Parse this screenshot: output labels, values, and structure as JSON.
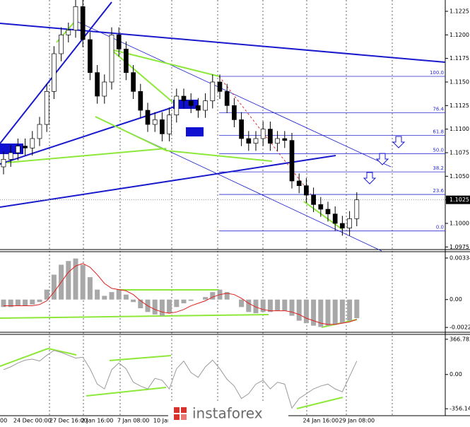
{
  "chart_data": [
    {
      "type": "candlestick",
      "categories": [
        "00",
        null,
        null,
        null,
        "24 Dec 00:00",
        null,
        null,
        null,
        null,
        "27 Dec 16:00",
        null,
        null,
        null,
        "2 Jan 16:00",
        null,
        null,
        null,
        null,
        "7 Jan 08:00",
        null,
        null,
        null,
        "10 Jan",
        null,
        null,
        null,
        null,
        null,
        null,
        null,
        null,
        null,
        null,
        null,
        null,
        null,
        null,
        null,
        null,
        null,
        null,
        null,
        null,
        null,
        "24 Jan 16:00",
        null,
        null,
        null,
        null,
        "29 Jan 08:00"
      ],
      "open": [
        1.106,
        1.1068,
        1.1075,
        1.1082,
        1.108,
        1.109,
        1.1105,
        1.114,
        1.118,
        1.12,
        1.1205,
        1.123,
        1.1195,
        1.116,
        1.1135,
        1.115,
        1.12,
        1.1185,
        1.116,
        1.114,
        1.112,
        1.1105,
        1.111,
        1.1095,
        1.1115,
        1.1135,
        1.113,
        1.1125,
        1.112,
        1.113,
        1.115,
        1.114,
        1.1125,
        1.111,
        1.109,
        1.1085,
        1.109,
        1.11,
        1.1085,
        1.109,
        1.1088,
        1.1045,
        1.104,
        1.103,
        1.102,
        1.1015,
        1.101,
        1.1,
        1.0995,
        1.1005
      ],
      "high": [
        1.1076,
        1.1083,
        1.109,
        1.109,
        1.1098,
        1.1113,
        1.1148,
        1.1188,
        1.1208,
        1.1213,
        1.1238,
        1.1238,
        1.1203,
        1.1168,
        1.1158,
        1.1208,
        1.1208,
        1.1193,
        1.1168,
        1.1148,
        1.1128,
        1.1118,
        1.1118,
        1.1123,
        1.1143,
        1.1143,
        1.1138,
        1.1133,
        1.1138,
        1.1158,
        1.1158,
        1.1148,
        1.1133,
        1.1118,
        1.1098,
        1.1098,
        1.1108,
        1.1108,
        1.1098,
        1.1098,
        1.1096,
        1.1053,
        1.1048,
        1.1038,
        1.1028,
        1.1023,
        1.1018,
        1.1008,
        1.1013,
        1.1033
      ],
      "low": [
        1.1052,
        1.106,
        1.1067,
        1.1072,
        1.1072,
        1.1082,
        1.1097,
        1.1132,
        1.1172,
        1.1192,
        1.1197,
        1.1187,
        1.1152,
        1.1127,
        1.1127,
        1.1142,
        1.1177,
        1.1152,
        1.1132,
        1.1112,
        1.1097,
        1.1097,
        1.1087,
        1.1087,
        1.1107,
        1.1122,
        1.1117,
        1.1112,
        1.1112,
        1.1122,
        1.1132,
        1.1117,
        1.1102,
        1.1082,
        1.1077,
        1.1077,
        1.1082,
        1.1077,
        1.1077,
        1.108,
        1.1037,
        1.1032,
        1.1022,
        1.1012,
        1.1007,
        1.1002,
        1.0992,
        1.0987,
        1.0987,
        1.0997
      ],
      "close": [
        1.1068,
        1.1075,
        1.1082,
        1.108,
        1.109,
        1.1105,
        1.114,
        1.118,
        1.12,
        1.1205,
        1.123,
        1.1195,
        1.116,
        1.1135,
        1.115,
        1.12,
        1.1185,
        1.116,
        1.114,
        1.112,
        1.1105,
        1.111,
        1.1095,
        1.1115,
        1.1135,
        1.113,
        1.1125,
        1.112,
        1.113,
        1.115,
        1.114,
        1.1125,
        1.111,
        1.109,
        1.1085,
        1.109,
        1.11,
        1.1085,
        1.109,
        1.1088,
        1.1045,
        1.104,
        1.103,
        1.102,
        1.1015,
        1.101,
        1.1,
        1.0995,
        1.1005,
        1.1025
      ],
      "ylim": [
        1.0973,
        1.1237
      ],
      "yticks": [
        {
          "value": 1.0975,
          "label": "1.0975"
        },
        {
          "value": 1.1,
          "label": "1.1000"
        },
        {
          "value": 1.1025,
          "label": "1.1025"
        },
        {
          "value": 1.105,
          "label": "1.1050"
        },
        {
          "value": 1.1075,
          "label": "1.1075"
        },
        {
          "value": 1.11,
          "label": "1.1100"
        },
        {
          "value": 1.1125,
          "label": "1.1125"
        },
        {
          "value": 1.115,
          "label": "1.1150"
        },
        {
          "value": 1.1175,
          "label": "1.1175"
        },
        {
          "value": 1.12,
          "label": "1.1200"
        },
        {
          "value": 1.1225,
          "label": "1.1225"
        }
      ],
      "current_price": {
        "value": 1.1025,
        "label": "1.1025"
      },
      "fib": {
        "price_range": [
          1.0992,
          1.1156
        ],
        "levels": [
          {
            "value": 0,
            "label": "0.0"
          },
          {
            "value": 23.6,
            "label": "23.6"
          },
          {
            "value": 38.2,
            "label": "38.2"
          },
          {
            "value": 50,
            "label": "50.0"
          },
          {
            "value": 61.8,
            "label": "61.8"
          },
          {
            "value": 76.4,
            "label": "76.4"
          },
          {
            "value": 100,
            "label": "100.0"
          }
        ]
      },
      "watermark": "instaforex"
    },
    {
      "type": "macd",
      "values": [
        -0.0006,
        -0.0006,
        -0.0005,
        -0.0005,
        -0.0004,
        -0.0002,
        0.0008,
        0.002,
        0.0028,
        0.0031,
        0.0033,
        0.0028,
        0.0018,
        0.0008,
        0.0003,
        0.0006,
        0.0008,
        0.0004,
        -0.0002,
        -0.0007,
        -0.001,
        -0.0012,
        -0.0013,
        -0.0011,
        -0.0006,
        -0.0003,
        -0.0001,
        0.0,
        0.0002,
        0.0006,
        0.0008,
        0.0006,
        0.0,
        -0.0006,
        -0.001,
        -0.0011,
        -0.001,
        -0.001,
        -0.0009,
        -0.0009,
        -0.0013,
        -0.0017,
        -0.0019,
        -0.0021,
        -0.0022,
        -0.0021,
        -0.002,
        -0.0019,
        -0.0017,
        -0.0015
      ],
      "signal": [
        -0.0005,
        -0.0005,
        -0.0005,
        -0.0005,
        -0.0005,
        -0.0004,
        -0.0001,
        0.0006,
        0.0014,
        0.0022,
        0.0027,
        0.0029,
        0.0026,
        0.002,
        0.0013,
        0.0009,
        0.0008,
        0.0007,
        0.0004,
        -0.0001,
        -0.0005,
        -0.0008,
        -0.001,
        -0.0011,
        -0.001,
        -0.0008,
        -0.0005,
        -0.0003,
        -0.0001,
        0.0002,
        0.0004,
        0.0005,
        0.0004,
        0.0001,
        -0.0003,
        -0.0006,
        -0.0008,
        -0.0009,
        -0.0009,
        -0.0009,
        -0.001,
        -0.0012,
        -0.0015,
        -0.0017,
        -0.0019,
        -0.002,
        -0.002,
        -0.0019,
        -0.0018,
        -0.0016
      ],
      "ylim": [
        -0.00263,
        0.00385
      ],
      "yticks": [
        0.00334,
        {
          "value": 0,
          "label": "0.00"
        },
        -0.00224
      ]
    },
    {
      "type": "cci",
      "values": [
        50,
        80,
        120,
        150,
        160,
        140,
        200,
        250,
        230,
        200,
        170,
        180,
        60,
        -100,
        -150,
        50,
        120,
        60,
        -80,
        -120,
        -150,
        -40,
        -60,
        -150,
        60,
        140,
        20,
        -30,
        80,
        150,
        60,
        -50,
        -120,
        -250,
        -200,
        -100,
        -60,
        -150,
        -80,
        -100,
        -350,
        -250,
        -200,
        -150,
        -120,
        -100,
        -150,
        -180,
        -20,
        140
      ],
      "ylim": [
        -428.5,
        417.4
      ],
      "yticks": [
        366.782,
        {
          "value": 0,
          "label": "0.00"
        },
        -356.145
      ]
    }
  ]
}
